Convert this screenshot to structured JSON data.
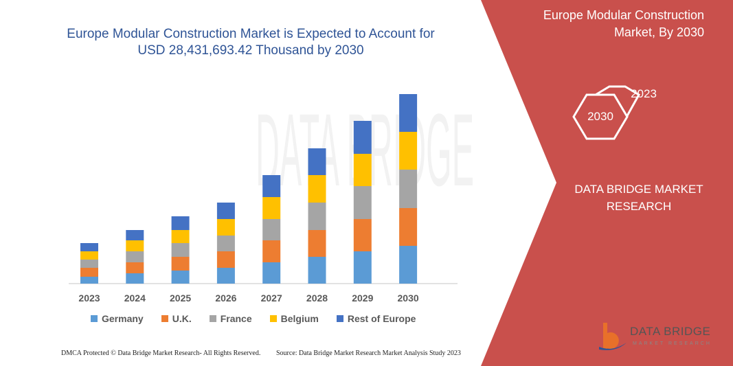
{
  "title": "Europe Modular Construction Market is Expected to Account for USD 28,431,693.42 Thousand  by 2030",
  "watermark": "DATA BRIDGE",
  "side_panel": {
    "title": "Europe Modular Construction Market, By 2030",
    "hex_front": "2030",
    "hex_back": "2023",
    "brand": "DATA BRIDGE MARKET RESEARCH",
    "color": "#c9504c"
  },
  "logo": {
    "text": "DATA BRIDGE",
    "sub": "MARKET RESEARCH"
  },
  "footer": {
    "left": "DMCA Protected © Data Bridge Market Research-  All Rights Reserved.",
    "right": "Source: Data Bridge Market Research  Market Analysis Study 2023"
  },
  "chart_data": {
    "type": "bar",
    "stacked": true,
    "title": "Europe Modular Construction Market is Expected to Account for USD 28,431,693.42 Thousand  by 2030",
    "categories": [
      "2023",
      "2024",
      "2025",
      "2026",
      "2027",
      "2028",
      "2029",
      "2030"
    ],
    "series": [
      {
        "name": "Germany",
        "color": "#5b9bd5",
        "values": [
          10,
          15,
          19,
          23,
          31,
          39,
          47,
          55
        ]
      },
      {
        "name": "U.K.",
        "color": "#ed7d31",
        "values": [
          13,
          16,
          20,
          24,
          32,
          39,
          47,
          55
        ]
      },
      {
        "name": "France",
        "color": "#a5a5a5",
        "values": [
          12,
          16,
          20,
          23,
          31,
          40,
          48,
          56
        ]
      },
      {
        "name": "Belgium",
        "color": "#ffc000",
        "values": [
          12,
          16,
          19,
          24,
          32,
          40,
          47,
          55
        ]
      },
      {
        "name": "Rest of Europe",
        "color": "#4472c4",
        "values": [
          12,
          15,
          20,
          24,
          32,
          39,
          48,
          55
        ]
      }
    ],
    "value_note_units": "relative (no value axis shown)",
    "legend": "bottom",
    "grid": false
  }
}
